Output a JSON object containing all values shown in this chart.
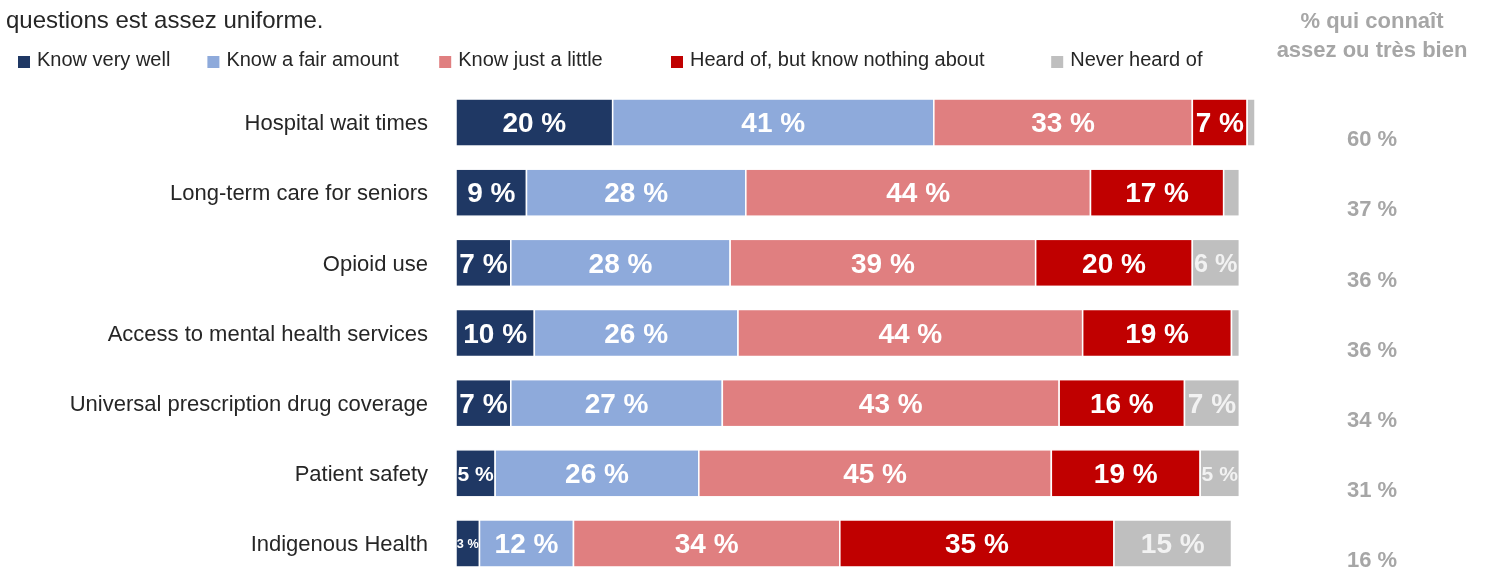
{
  "chart_data": {
    "type": "bar",
    "orientation": "horizontal",
    "stacked": true,
    "title": "questions est assez uniforme.",
    "legend": "top",
    "categories": [
      "Hospital wait times",
      "Long-term care for seniors",
      "Opioid use",
      "Access to mental health services",
      "Universal prescription drug coverage",
      "Patient safety",
      "Indigenous Health"
    ],
    "series": [
      {
        "name": "Know very well",
        "color": "#1f3864",
        "values": [
          20,
          9,
          7,
          10,
          7,
          5,
          3
        ],
        "value_labels": [
          "20 %",
          "9 %",
          "7 %",
          "10 %",
          "7 %",
          "5 %",
          "3 %"
        ]
      },
      {
        "name": "Know a fair amount",
        "color": "#8eaadb",
        "values": [
          41,
          28,
          28,
          26,
          27,
          26,
          12
        ],
        "value_labels": [
          "41 %",
          "28 %",
          "28 %",
          "26 %",
          "27 %",
          "26 %",
          "12 %"
        ]
      },
      {
        "name": "Know just a little",
        "color": "#e07f80",
        "values": [
          33,
          44,
          39,
          44,
          43,
          45,
          34
        ],
        "value_labels": [
          "33 %",
          "44 %",
          "39 %",
          "44 %",
          "43 %",
          "45 %",
          "34 %"
        ]
      },
      {
        "name": "Heard of, but know nothing about",
        "color": "#c00000",
        "values": [
          7,
          17,
          20,
          19,
          16,
          19,
          35
        ],
        "value_labels": [
          "7 %",
          "17 %",
          "20 %",
          "19 %",
          "16 %",
          "19 %",
          "35 %"
        ]
      },
      {
        "name": "Never heard of",
        "color": "#bfbfbf",
        "values": [
          1,
          2,
          6,
          1,
          7,
          5,
          15
        ],
        "value_labels": [
          null,
          null,
          "6 %",
          null,
          "7 %",
          "5 %",
          "15 %"
        ]
      }
    ],
    "annotations": [
      "% qui connaît assez ou très bien",
      "60 %",
      "37 %",
      "36 %",
      "36 %",
      "34 %",
      "31 %",
      "16 %"
    ]
  }
}
